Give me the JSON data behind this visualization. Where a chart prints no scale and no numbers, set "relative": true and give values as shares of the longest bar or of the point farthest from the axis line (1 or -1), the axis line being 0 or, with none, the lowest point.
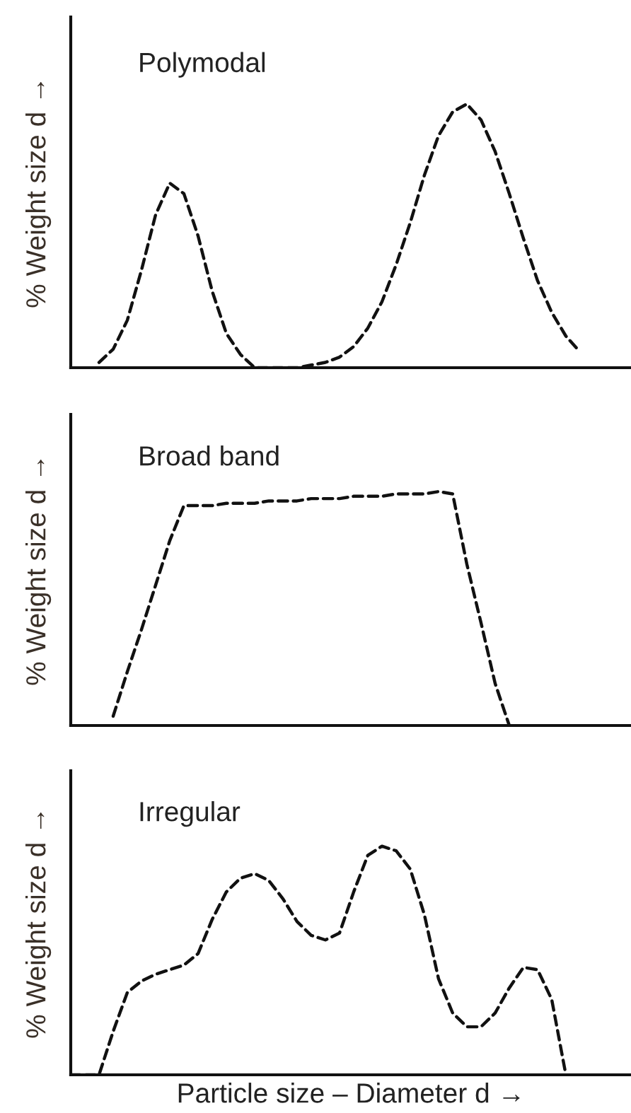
{
  "chart_data": [
    {
      "type": "line",
      "title": "Polymodal",
      "ylabel": "% Weight size d →",
      "relative": true,
      "line_style": "dashed",
      "tick_labels": false,
      "categories": [
        null,
        null,
        null,
        null,
        null,
        null,
        null,
        null,
        null,
        null,
        null,
        null,
        null,
        null,
        null,
        null,
        null,
        null,
        null,
        null,
        null,
        null,
        null,
        null,
        null,
        null,
        null,
        null,
        null,
        null,
        null,
        null,
        null,
        null,
        null,
        null,
        null,
        null,
        null,
        null
      ],
      "series": [
        {
          "color": "#111111",
          "values": [
            null,
            null,
            0.02,
            0.07,
            0.18,
            0.37,
            0.58,
            0.7,
            0.66,
            0.5,
            0.29,
            0.13,
            0.05,
            0,
            0,
            0,
            0,
            0.01,
            0.02,
            0.04,
            0.08,
            0.15,
            0.25,
            0.39,
            0.55,
            0.73,
            0.88,
            0.97,
            1.0,
            0.94,
            0.82,
            0.66,
            0.49,
            0.33,
            0.21,
            0.12,
            0.06,
            null,
            null,
            null
          ]
        }
      ]
    },
    {
      "type": "line",
      "title": "Broad band",
      "ylabel": "% Weight size d →",
      "relative": true,
      "line_style": "dashed",
      "tick_labels": false,
      "categories": [
        null,
        null,
        null,
        null,
        null,
        null,
        null,
        null,
        null,
        null,
        null,
        null,
        null,
        null,
        null,
        null,
        null,
        null,
        null,
        null,
        null,
        null,
        null,
        null,
        null,
        null,
        null,
        null,
        null,
        null,
        null,
        null,
        null,
        null,
        null,
        null,
        null,
        null,
        null,
        null
      ],
      "series": [
        {
          "color": "#111111",
          "values": [
            null,
            null,
            null,
            0.04,
            0.23,
            0.41,
            0.6,
            0.79,
            0.94,
            0.94,
            0.94,
            0.95,
            0.95,
            0.95,
            0.96,
            0.96,
            0.96,
            0.97,
            0.97,
            0.97,
            0.98,
            0.98,
            0.98,
            0.99,
            0.99,
            0.99,
            1.0,
            0.99,
            0.69,
            0.44,
            0.18,
            0,
            null,
            null,
            null,
            null,
            null,
            null,
            null,
            null
          ]
        }
      ]
    },
    {
      "type": "line",
      "title": "Irregular",
      "ylabel": "% Weight size d →",
      "xlabel": "Particle size – Diameter d →",
      "relative": true,
      "line_style": "dashed",
      "tick_labels": false,
      "categories": [
        null,
        null,
        null,
        null,
        null,
        null,
        null,
        null,
        null,
        null,
        null,
        null,
        null,
        null,
        null,
        null,
        null,
        null,
        null,
        null,
        null,
        null,
        null,
        null,
        null,
        null,
        null,
        null,
        null,
        null,
        null,
        null,
        null,
        null,
        null,
        null,
        null,
        null,
        null,
        null
      ],
      "series": [
        {
          "color": "#111111",
          "values": [
            0,
            0,
            0,
            0.19,
            0.36,
            0.41,
            0.44,
            0.46,
            0.48,
            0.53,
            0.68,
            0.8,
            0.86,
            0.88,
            0.85,
            0.77,
            0.67,
            0.61,
            0.59,
            0.62,
            0.8,
            0.96,
            1.0,
            0.98,
            0.9,
            0.7,
            0.42,
            0.27,
            0.21,
            0.21,
            0.27,
            0.38,
            0.47,
            0.46,
            0.33,
            0,
            null,
            null,
            null,
            null
          ]
        }
      ]
    }
  ]
}
